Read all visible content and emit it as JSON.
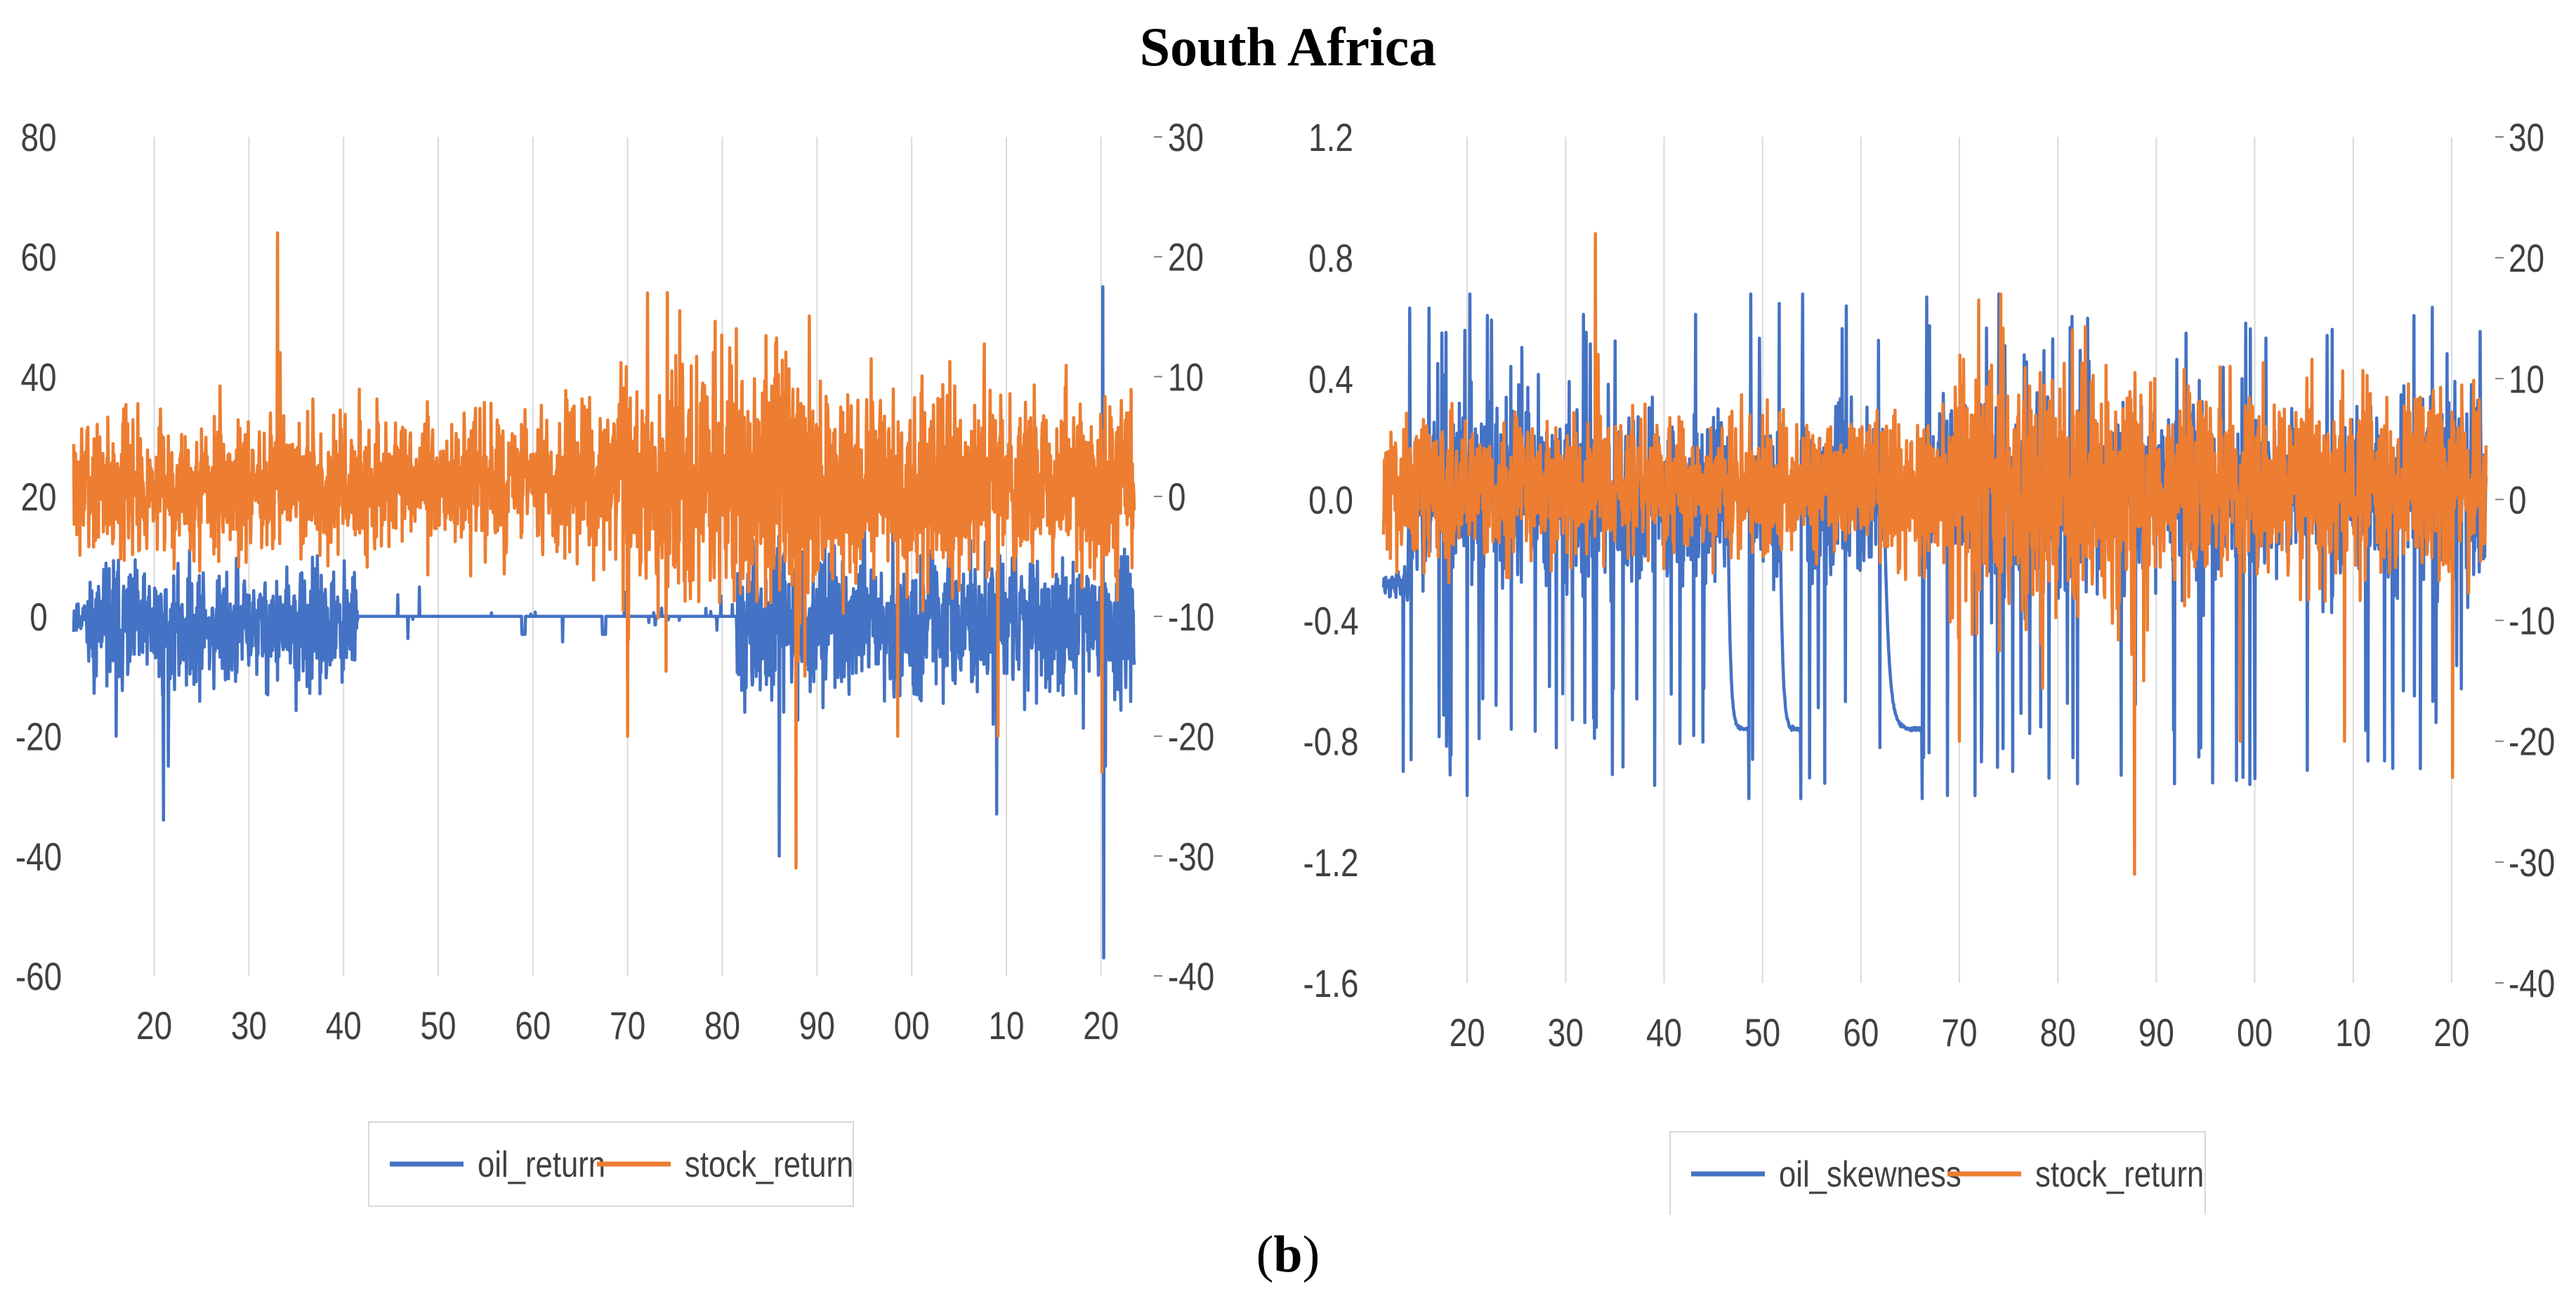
{
  "figure": {
    "title": "South Africa",
    "caption_open": "(",
    "caption_letter": "b",
    "caption_close": ")"
  },
  "colors": {
    "blue": "#4472C4",
    "orange": "#ED7D31",
    "grid": "#D9D9D9",
    "text": "#404040"
  },
  "chart_data": [
    {
      "type": "line",
      "title": "",
      "x_tick_labels": [
        "20",
        "30",
        "40",
        "50",
        "60",
        "70",
        "80",
        "90",
        "00",
        "10",
        "20"
      ],
      "x_tick_years": [
        1920,
        1930,
        1940,
        1950,
        1960,
        1970,
        1980,
        1990,
        2000,
        2010,
        2020
      ],
      "xlim": [
        1911.5,
        2023.5
      ],
      "left_axis": {
        "ylim": [
          -60,
          80
        ],
        "ticks": [
          "80",
          "60",
          "40",
          "20",
          "0",
          "-20",
          "-40",
          "-60"
        ]
      },
      "right_axis": {
        "ylim": [
          -40,
          30
        ],
        "ticks": [
          "30",
          "20",
          "10",
          "0",
          "-10",
          "-20",
          "-30",
          "-40"
        ]
      },
      "series": [
        {
          "name": "oil_return",
          "axis": "left",
          "color": "#4472C4",
          "approx_range": [
            -57,
            55
          ],
          "notable_points": [
            [
              1921,
              -34
            ],
            [
              1986,
              -40
            ],
            [
              2009,
              -33
            ],
            [
              2020.3,
              -57
            ],
            [
              2020.2,
              55
            ]
          ]
        },
        {
          "name": "stock_return",
          "axis": "right",
          "color": "#ED7D31",
          "approx_range": [
            -31,
            22
          ],
          "notable_points": [
            [
              1933,
              22
            ],
            [
              1970,
              -20
            ],
            [
              1987.8,
              -31
            ],
            [
              1998.5,
              -20
            ],
            [
              2020.1,
              -23
            ]
          ]
        }
      ],
      "legend": [
        "oil_return",
        "stock_return"
      ],
      "legend_position": "bottom"
    },
    {
      "type": "line",
      "title": "",
      "x_tick_labels": [
        "20",
        "30",
        "40",
        "50",
        "60",
        "70",
        "80",
        "90",
        "00",
        "10",
        "20"
      ],
      "x_tick_years": [
        1920,
        1930,
        1940,
        1950,
        1960,
        1970,
        1980,
        1990,
        2000,
        2010,
        2020
      ],
      "xlim": [
        1911.5,
        2023.5
      ],
      "left_axis": {
        "ylim": [
          -1.6,
          1.2
        ],
        "ticks": [
          "1.2",
          "0.8",
          "0.4",
          "0.0",
          "-0.4",
          "-0.8",
          "-1.2",
          "-1.6"
        ]
      },
      "right_axis": {
        "ylim": [
          -40,
          30
        ],
        "ticks": [
          "30",
          "20",
          "10",
          "0",
          "-10",
          "-20",
          "-30",
          "-40"
        ]
      },
      "series": [
        {
          "name": "oil_skewness",
          "axis": "left",
          "color": "#4472C4",
          "approx_range": [
            -0.99,
            0.68
          ],
          "notable_points": [
            [
              1920,
              -0.98
            ],
            [
              1948,
              -0.76
            ],
            [
              1954,
              -0.76
            ],
            [
              1966,
              -0.76
            ],
            [
              1974,
              0.67
            ]
          ]
        },
        {
          "name": "stock_return",
          "axis": "right",
          "color": "#ED7D31",
          "approx_range": [
            -31,
            22
          ],
          "notable_points": [
            [
              1933,
              22
            ],
            [
              1987.8,
              -31
            ],
            [
              1998.5,
              -21
            ],
            [
              2009,
              -20
            ],
            [
              2020.1,
              -23
            ]
          ]
        }
      ],
      "legend": [
        "oil_skewness",
        "stock_return"
      ],
      "legend_position": "bottom"
    }
  ]
}
